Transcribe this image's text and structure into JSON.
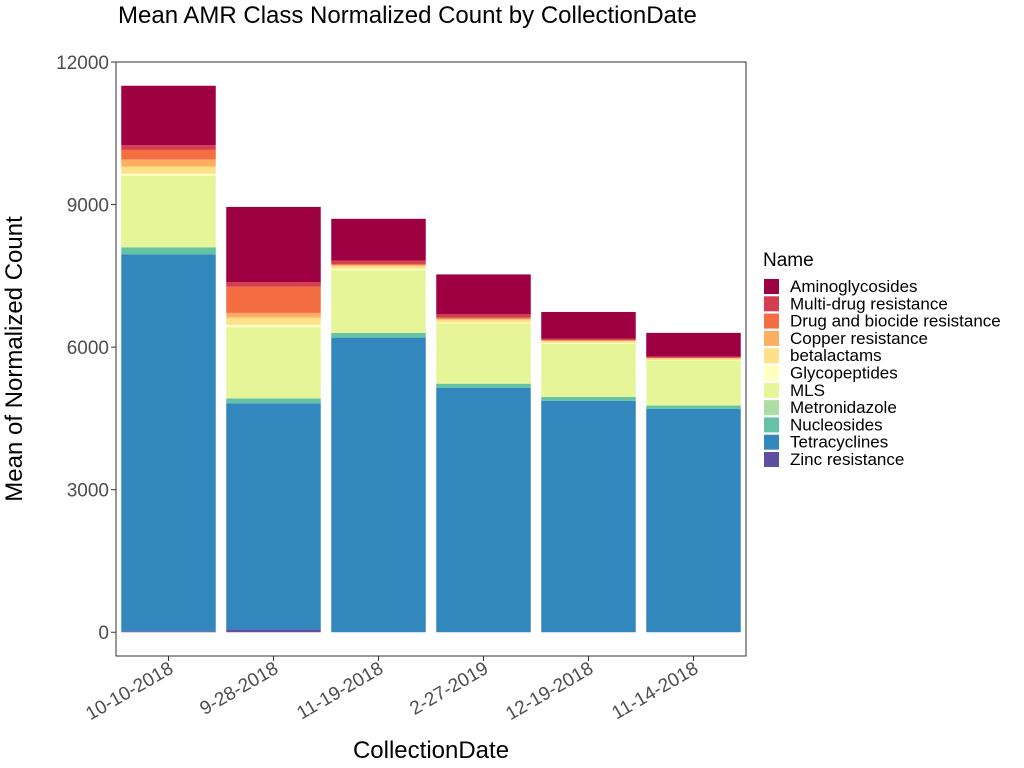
{
  "chart_data": {
    "type": "bar",
    "stacked": true,
    "title": "Mean AMR Class Normalized Count by CollectionDate",
    "xlabel": "CollectionDate",
    "ylabel": "Mean of Normalized Count",
    "ylim": [
      -500,
      12000
    ],
    "yticks": [
      0,
      3000,
      6000,
      9000,
      12000
    ],
    "grid": false,
    "legend_title": "Name",
    "legend_position": "right",
    "categories": [
      "10-10-2018",
      "9-28-2018",
      "11-19-2018",
      "2-27-2019",
      "12-19-2018",
      "11-14-2018"
    ],
    "series": [
      {
        "name": "Zinc resistance",
        "color": "#5E4FA2",
        "values": [
          20,
          60,
          0,
          0,
          0,
          0
        ]
      },
      {
        "name": "Tetracyclines",
        "color": "#3288BD",
        "values": [
          7930,
          4760,
          6200,
          5140,
          4870,
          4700
        ]
      },
      {
        "name": "Nucleosides",
        "color": "#66C2A5",
        "values": [
          150,
          100,
          100,
          90,
          80,
          70
        ]
      },
      {
        "name": "Metronidazole",
        "color": "#ABDDA4",
        "values": [
          0,
          0,
          0,
          0,
          0,
          0
        ]
      },
      {
        "name": "MLS",
        "color": "#E6F598",
        "values": [
          1500,
          1500,
          1320,
          1270,
          1120,
          950
        ]
      },
      {
        "name": "Glycopeptides",
        "color": "#FFFFBF",
        "values": [
          50,
          50,
          30,
          20,
          20,
          10
        ]
      },
      {
        "name": "betalactams",
        "color": "#FEE08B",
        "values": [
          150,
          150,
          60,
          60,
          40,
          30
        ]
      },
      {
        "name": "Copper resistance",
        "color": "#FDAE61",
        "values": [
          150,
          100,
          20,
          20,
          10,
          10
        ]
      },
      {
        "name": "Drug and biocide resistance",
        "color": "#F46D43",
        "values": [
          200,
          550,
          20,
          20,
          10,
          10
        ]
      },
      {
        "name": "Multi-drug resistance",
        "color": "#D53E4F",
        "values": [
          100,
          100,
          70,
          70,
          30,
          20
        ]
      },
      {
        "name": "Aminoglycosides",
        "color": "#9E0142",
        "values": [
          1250,
          1580,
          880,
          840,
          560,
          500
        ]
      }
    ],
    "legend_order": [
      "Aminoglycosides",
      "Multi-drug resistance",
      "Drug and biocide resistance",
      "Copper resistance",
      "betalactams",
      "Glycopeptides",
      "MLS",
      "Metronidazole",
      "Nucleosides",
      "Tetracyclines",
      "Zinc resistance"
    ]
  }
}
